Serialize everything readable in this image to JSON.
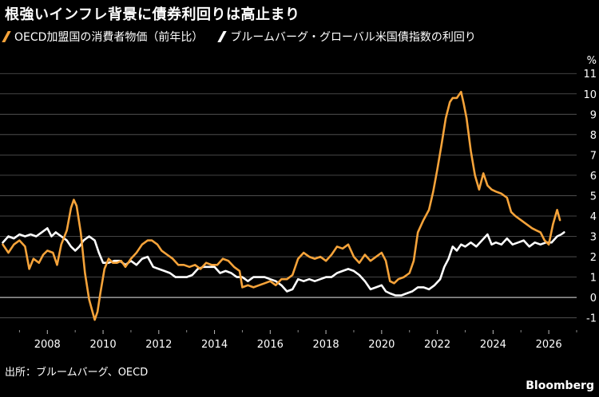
{
  "title": "根強いインフレ背景に債券利回りは高止まり",
  "source": "出所：ブルームバーグ、OECD",
  "brand": "Bloomberg",
  "colors": {
    "background": "#000000",
    "cpi": "#f5a33a",
    "yield": "#ffffff",
    "grid": "#5a5a5a"
  },
  "chart_data": {
    "type": "line",
    "title": "根強いインフレ背景に債券利回りは高止まり",
    "xlabel": "",
    "ylabel": "%",
    "xlim": [
      2006.3,
      2027.0
    ],
    "ylim": [
      -1.6,
      11.4
    ],
    "yticks": [
      -1,
      0,
      1,
      2,
      3,
      4,
      5,
      6,
      7,
      8,
      9,
      10,
      11
    ],
    "xticks": [
      2008,
      2010,
      2012,
      2014,
      2016,
      2018,
      2020,
      2022,
      2024,
      2026
    ],
    "grid": true,
    "legend_position": "top-left",
    "series": [
      {
        "name": "OECD加盟国の消費者物価（前年比）",
        "color": "#f5a33a",
        "points": [
          [
            2006.4,
            2.6
          ],
          [
            2006.6,
            2.2
          ],
          [
            2006.8,
            2.6
          ],
          [
            2007.0,
            2.8
          ],
          [
            2007.2,
            2.5
          ],
          [
            2007.35,
            1.4
          ],
          [
            2007.5,
            1.9
          ],
          [
            2007.7,
            1.7
          ],
          [
            2007.85,
            2.1
          ],
          [
            2008.0,
            2.3
          ],
          [
            2008.2,
            2.2
          ],
          [
            2008.35,
            1.6
          ],
          [
            2008.5,
            2.6
          ],
          [
            2008.7,
            3.3
          ],
          [
            2008.85,
            4.4
          ],
          [
            2008.95,
            4.8
          ],
          [
            2009.05,
            4.5
          ],
          [
            2009.2,
            3.2
          ],
          [
            2009.35,
            1.2
          ],
          [
            2009.5,
            -0.1
          ],
          [
            2009.6,
            -0.6
          ],
          [
            2009.7,
            -1.1
          ],
          [
            2009.8,
            -0.7
          ],
          [
            2009.9,
            0.2
          ],
          [
            2010.05,
            1.4
          ],
          [
            2010.2,
            1.9
          ],
          [
            2010.35,
            1.7
          ],
          [
            2010.5,
            1.7
          ],
          [
            2010.65,
            1.8
          ],
          [
            2010.8,
            1.5
          ],
          [
            2011.0,
            1.9
          ],
          [
            2011.2,
            2.2
          ],
          [
            2011.4,
            2.6
          ],
          [
            2011.6,
            2.8
          ],
          [
            2011.75,
            2.8
          ],
          [
            2011.95,
            2.6
          ],
          [
            2012.1,
            2.3
          ],
          [
            2012.3,
            2.1
          ],
          [
            2012.5,
            1.9
          ],
          [
            2012.7,
            1.6
          ],
          [
            2012.9,
            1.6
          ],
          [
            2013.1,
            1.5
          ],
          [
            2013.3,
            1.6
          ],
          [
            2013.5,
            1.4
          ],
          [
            2013.7,
            1.7
          ],
          [
            2013.9,
            1.6
          ],
          [
            2014.1,
            1.6
          ],
          [
            2014.3,
            1.9
          ],
          [
            2014.5,
            1.8
          ],
          [
            2014.7,
            1.5
          ],
          [
            2014.9,
            1.3
          ],
          [
            2015.0,
            0.5
          ],
          [
            2015.2,
            0.6
          ],
          [
            2015.4,
            0.5
          ],
          [
            2015.6,
            0.6
          ],
          [
            2015.8,
            0.7
          ],
          [
            2016.0,
            0.8
          ],
          [
            2016.2,
            0.6
          ],
          [
            2016.4,
            0.9
          ],
          [
            2016.6,
            0.9
          ],
          [
            2016.8,
            1.1
          ],
          [
            2017.0,
            1.9
          ],
          [
            2017.2,
            2.2
          ],
          [
            2017.4,
            2.0
          ],
          [
            2017.6,
            1.9
          ],
          [
            2017.8,
            2.0
          ],
          [
            2018.0,
            1.8
          ],
          [
            2018.2,
            2.1
          ],
          [
            2018.4,
            2.5
          ],
          [
            2018.6,
            2.4
          ],
          [
            2018.8,
            2.6
          ],
          [
            2019.0,
            2.0
          ],
          [
            2019.2,
            1.7
          ],
          [
            2019.4,
            2.1
          ],
          [
            2019.6,
            1.8
          ],
          [
            2019.8,
            2.0
          ],
          [
            2020.0,
            2.2
          ],
          [
            2020.15,
            1.8
          ],
          [
            2020.3,
            0.8
          ],
          [
            2020.45,
            0.7
          ],
          [
            2020.6,
            0.9
          ],
          [
            2020.8,
            1.0
          ],
          [
            2021.0,
            1.2
          ],
          [
            2021.15,
            1.8
          ],
          [
            2021.3,
            3.2
          ],
          [
            2021.5,
            3.8
          ],
          [
            2021.7,
            4.3
          ],
          [
            2021.85,
            5.2
          ],
          [
            2022.0,
            6.3
          ],
          [
            2022.15,
            7.5
          ],
          [
            2022.3,
            8.8
          ],
          [
            2022.45,
            9.6
          ],
          [
            2022.55,
            9.8
          ],
          [
            2022.7,
            9.8
          ],
          [
            2022.85,
            10.1
          ],
          [
            2022.95,
            9.5
          ],
          [
            2023.05,
            8.8
          ],
          [
            2023.2,
            7.2
          ],
          [
            2023.35,
            6.0
          ],
          [
            2023.5,
            5.3
          ],
          [
            2023.65,
            6.1
          ],
          [
            2023.8,
            5.5
          ],
          [
            2023.95,
            5.3
          ],
          [
            2024.1,
            5.2
          ],
          [
            2024.3,
            5.1
          ],
          [
            2024.5,
            4.9
          ],
          [
            2024.65,
            4.2
          ],
          [
            2024.8,
            4.0
          ],
          [
            2025.0,
            3.8
          ],
          [
            2025.2,
            3.6
          ],
          [
            2025.4,
            3.4
          ],
          [
            2025.55,
            3.3
          ],
          [
            2025.7,
            3.2
          ],
          [
            2025.85,
            2.8
          ],
          [
            2026.0,
            2.6
          ],
          [
            2026.15,
            3.6
          ],
          [
            2026.3,
            4.3
          ],
          [
            2026.4,
            3.8
          ]
        ]
      },
      {
        "name": "ブルームバーグ・グローバル米国債指数の利回り",
        "color": "#ffffff",
        "points": [
          [
            2006.4,
            2.7
          ],
          [
            2006.6,
            3.0
          ],
          [
            2006.8,
            2.9
          ],
          [
            2007.0,
            3.1
          ],
          [
            2007.2,
            3.0
          ],
          [
            2007.4,
            3.1
          ],
          [
            2007.6,
            3.0
          ],
          [
            2007.8,
            3.2
          ],
          [
            2008.0,
            3.4
          ],
          [
            2008.15,
            3.0
          ],
          [
            2008.3,
            3.2
          ],
          [
            2008.5,
            3.0
          ],
          [
            2008.7,
            2.8
          ],
          [
            2008.85,
            2.5
          ],
          [
            2009.0,
            2.3
          ],
          [
            2009.15,
            2.5
          ],
          [
            2009.3,
            2.8
          ],
          [
            2009.5,
            3.0
          ],
          [
            2009.7,
            2.8
          ],
          [
            2009.85,
            2.2
          ],
          [
            2010.0,
            1.7
          ],
          [
            2010.2,
            1.7
          ],
          [
            2010.4,
            1.8
          ],
          [
            2010.6,
            1.8
          ],
          [
            2010.8,
            1.6
          ],
          [
            2011.0,
            1.8
          ],
          [
            2011.2,
            1.6
          ],
          [
            2011.4,
            1.9
          ],
          [
            2011.6,
            2.0
          ],
          [
            2011.8,
            1.5
          ],
          [
            2012.0,
            1.4
          ],
          [
            2012.2,
            1.3
          ],
          [
            2012.4,
            1.2
          ],
          [
            2012.6,
            1.0
          ],
          [
            2012.8,
            1.0
          ],
          [
            2013.0,
            1.0
          ],
          [
            2013.2,
            1.1
          ],
          [
            2013.4,
            1.4
          ],
          [
            2013.6,
            1.5
          ],
          [
            2013.8,
            1.5
          ],
          [
            2014.0,
            1.5
          ],
          [
            2014.2,
            1.2
          ],
          [
            2014.4,
            1.3
          ],
          [
            2014.6,
            1.2
          ],
          [
            2014.8,
            1.0
          ],
          [
            2015.0,
            1.0
          ],
          [
            2015.2,
            0.8
          ],
          [
            2015.4,
            1.0
          ],
          [
            2015.6,
            1.0
          ],
          [
            2015.8,
            1.0
          ],
          [
            2016.0,
            0.9
          ],
          [
            2016.2,
            0.8
          ],
          [
            2016.4,
            0.6
          ],
          [
            2016.6,
            0.3
          ],
          [
            2016.8,
            0.4
          ],
          [
            2017.0,
            0.9
          ],
          [
            2017.2,
            0.8
          ],
          [
            2017.4,
            0.9
          ],
          [
            2017.6,
            0.8
          ],
          [
            2017.8,
            0.9
          ],
          [
            2018.0,
            1.0
          ],
          [
            2018.2,
            1.0
          ],
          [
            2018.4,
            1.2
          ],
          [
            2018.6,
            1.3
          ],
          [
            2018.8,
            1.4
          ],
          [
            2019.0,
            1.3
          ],
          [
            2019.2,
            1.1
          ],
          [
            2019.4,
            0.8
          ],
          [
            2019.6,
            0.4
          ],
          [
            2019.8,
            0.5
          ],
          [
            2020.0,
            0.6
          ],
          [
            2020.15,
            0.3
          ],
          [
            2020.3,
            0.2
          ],
          [
            2020.5,
            0.1
          ],
          [
            2020.7,
            0.1
          ],
          [
            2020.9,
            0.2
          ],
          [
            2021.1,
            0.3
          ],
          [
            2021.3,
            0.5
          ],
          [
            2021.5,
            0.5
          ],
          [
            2021.7,
            0.4
          ],
          [
            2021.9,
            0.6
          ],
          [
            2022.1,
            0.9
          ],
          [
            2022.25,
            1.5
          ],
          [
            2022.4,
            1.9
          ],
          [
            2022.55,
            2.5
          ],
          [
            2022.7,
            2.3
          ],
          [
            2022.85,
            2.6
          ],
          [
            2023.0,
            2.5
          ],
          [
            2023.2,
            2.7
          ],
          [
            2023.4,
            2.5
          ],
          [
            2023.6,
            2.8
          ],
          [
            2023.8,
            3.1
          ],
          [
            2023.95,
            2.6
          ],
          [
            2024.1,
            2.7
          ],
          [
            2024.3,
            2.6
          ],
          [
            2024.5,
            2.9
          ],
          [
            2024.7,
            2.6
          ],
          [
            2024.9,
            2.7
          ],
          [
            2025.1,
            2.8
          ],
          [
            2025.3,
            2.5
          ],
          [
            2025.5,
            2.7
          ],
          [
            2025.7,
            2.6
          ],
          [
            2025.9,
            2.7
          ],
          [
            2026.1,
            2.7
          ],
          [
            2026.3,
            3.0
          ],
          [
            2026.45,
            3.1
          ],
          [
            2026.55,
            3.2
          ]
        ]
      }
    ]
  }
}
